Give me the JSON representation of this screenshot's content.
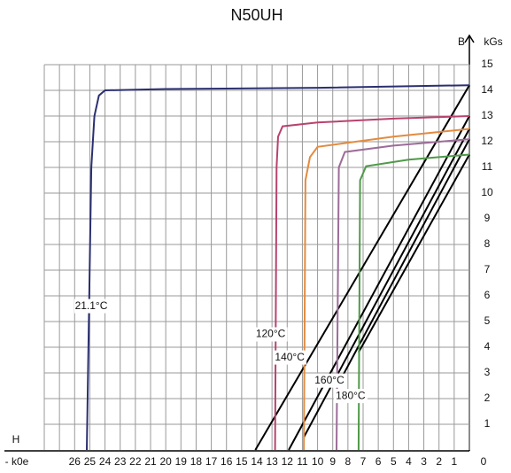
{
  "chart_data": {
    "type": "line",
    "title": "N50UH",
    "xlabel": "H",
    "xunit": "- k0e",
    "ylabel": "B",
    "yunit": "kGs",
    "xlim": [
      28,
      0
    ],
    "ylim": [
      0,
      15
    ],
    "xticks": [
      26,
      25,
      24,
      23,
      22,
      21,
      20,
      19,
      18,
      17,
      16,
      15,
      14,
      13,
      12,
      11,
      10,
      9,
      8,
      7,
      6,
      5,
      4,
      3,
      2,
      1,
      0
    ],
    "x_minor_ticks": [
      27
    ],
    "yticks": [
      1,
      2,
      3,
      4,
      5,
      6,
      7,
      8,
      9,
      10,
      11,
      12,
      13,
      14,
      15
    ],
    "grid": true,
    "series": [
      {
        "name": "21.1°C",
        "color": "#2b2f70",
        "x": [
          0,
          10,
          20,
          24,
          24.4,
          24.7,
          24.9,
          25.2
        ],
        "values": [
          14.2,
          14.1,
          14.05,
          14.0,
          13.8,
          13.0,
          11.0,
          0
        ]
      },
      {
        "name": "120°C",
        "color": "#b8426f",
        "x": [
          0,
          5,
          10,
          12.3,
          12.6,
          12.7,
          12.8
        ],
        "values": [
          13.0,
          12.9,
          12.75,
          12.6,
          12.2,
          11.0,
          0
        ]
      },
      {
        "name": "140°C",
        "color": "#e38b3f",
        "x": [
          0,
          5,
          10,
          10.5,
          10.8,
          10.9
        ],
        "values": [
          12.5,
          12.2,
          11.8,
          11.4,
          10.5,
          0
        ]
      },
      {
        "name": "160°C",
        "color": "#9c6c98",
        "x": [
          0,
          5,
          8.2,
          8.6,
          8.75
        ],
        "values": [
          12.1,
          11.85,
          11.6,
          11.0,
          0
        ]
      },
      {
        "name": "180°C",
        "color": "#4f9a48",
        "x": [
          0,
          4,
          6.8,
          7.2,
          7.3
        ],
        "values": [
          11.5,
          11.3,
          11.05,
          10.5,
          0
        ]
      }
    ],
    "load_lines": [
      {
        "color": "#000000",
        "x": [
          14.1,
          0
        ],
        "values": [
          0,
          14.2
        ]
      },
      {
        "color": "#000000",
        "x": [
          11.9,
          0
        ],
        "values": [
          0,
          13.0
        ]
      },
      {
        "color": "#000000",
        "x": [
          10.9,
          0
        ],
        "values": [
          0.5,
          12.5
        ]
      },
      {
        "color": "#000000",
        "x": [
          8.7,
          0
        ],
        "values": [
          2.5,
          12.1
        ]
      },
      {
        "color": "#000000",
        "x": [
          7.3,
          0
        ],
        "values": [
          3.8,
          11.5
        ]
      }
    ]
  }
}
